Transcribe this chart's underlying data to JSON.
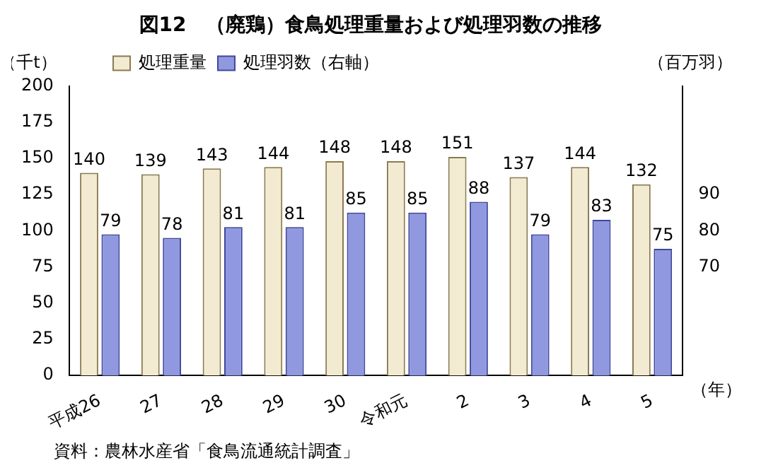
{
  "chart_data": {
    "type": "bar",
    "title": "図12　（廃鶏）食鳥処理重量および処理羽数の推移",
    "ylabel": "（千t）",
    "y2label": "（百万羽）",
    "categories": [
      "平成26",
      "27",
      "28",
      "29",
      "30",
      "令和元",
      "2",
      "3",
      "4",
      "5"
    ],
    "series": [
      {
        "name": "処理重量",
        "color": "#f3ead2",
        "values": [
          140,
          139,
          143,
          144,
          148,
          148,
          151,
          137,
          144,
          132
        ]
      },
      {
        "name": "処理羽数（右軸）",
        "color": "#9098e0",
        "axis": "y2",
        "values": [
          79,
          78,
          81,
          81,
          85,
          85,
          88,
          79,
          83,
          75
        ]
      }
    ],
    "ylim": [
      0,
      200
    ],
    "yticks": [
      0,
      25,
      50,
      75,
      100,
      125,
      150,
      175,
      200
    ],
    "y2lim": [
      40,
      120
    ],
    "y2ticks": [
      70,
      80,
      90
    ],
    "data_labels": true,
    "grid": false,
    "legend": "top left",
    "annotations": [
      "（年）",
      "資料：農林水産省「食鳥流通統計調査」"
    ]
  }
}
